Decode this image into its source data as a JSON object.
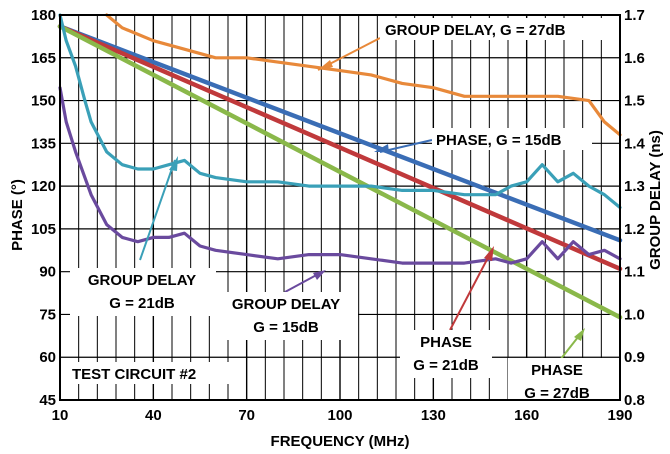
{
  "chart_data": {
    "type": "line",
    "title": "",
    "xlabel": "FREQUENCY (MHz)",
    "ylabel_left": "PHASE (°)",
    "ylabel_right": "GROUP DELAY (ns)",
    "xlim": [
      10,
      190
    ],
    "ylim_left": [
      45,
      180
    ],
    "ylim_right": [
      0.8,
      1.7
    ],
    "x_ticks": [
      "10",
      "40",
      "70",
      "100",
      "130",
      "160",
      "190"
    ],
    "y_left_ticks": [
      "45",
      "60",
      "75",
      "90",
      "105",
      "120",
      "135",
      "150",
      "165",
      "180"
    ],
    "y_right_ticks": [
      "0.8",
      "0.9",
      "1.0",
      "1.1",
      "1.2",
      "1.3",
      "1.4",
      "1.5",
      "1.6",
      "1.7"
    ],
    "grid": true,
    "colors": {
      "phase_15": "#3a6db5",
      "phase_21": "#c0393b",
      "phase_27": "#8ab84a",
      "gd_27": "#e8893a",
      "gd_21": "#3aa0b8",
      "gd_15": "#6a4a9e"
    },
    "series": [
      {
        "name": "PHASE, G = 15dB",
        "axis": "left",
        "x": [
          10,
          190
        ],
        "y": [
          176,
          101
        ]
      },
      {
        "name": "PHASE, G = 21dB",
        "axis": "left",
        "x": [
          10,
          190
        ],
        "y": [
          176,
          91
        ]
      },
      {
        "name": "PHASE, G = 27dB",
        "axis": "left",
        "x": [
          10,
          190
        ],
        "y": [
          176,
          74
        ]
      },
      {
        "name": "GROUP DELAY, G = 27dB",
        "axis": "right",
        "x": [
          25,
          30,
          40,
          50,
          60,
          70,
          80,
          90,
          100,
          110,
          120,
          130,
          140,
          150,
          160,
          170,
          180,
          185,
          190
        ],
        "y": [
          1.71,
          1.67,
          1.64,
          1.62,
          1.6,
          1.6,
          1.59,
          1.58,
          1.57,
          1.56,
          1.54,
          1.53,
          1.51,
          1.51,
          1.51,
          1.51,
          1.5,
          1.45,
          1.42
        ]
      },
      {
        "name": "GROUP DELAY G = 21dB",
        "axis": "right",
        "x": [
          10,
          12,
          15,
          18,
          20,
          25,
          30,
          35,
          40,
          45,
          50,
          55,
          60,
          70,
          80,
          90,
          100,
          110,
          120,
          130,
          140,
          150,
          155,
          160,
          165,
          170,
          175,
          180,
          185,
          190
        ],
        "y": [
          1.7,
          1.64,
          1.58,
          1.5,
          1.45,
          1.38,
          1.35,
          1.34,
          1.34,
          1.35,
          1.36,
          1.33,
          1.32,
          1.31,
          1.31,
          1.3,
          1.3,
          1.3,
          1.29,
          1.29,
          1.28,
          1.28,
          1.3,
          1.31,
          1.35,
          1.31,
          1.33,
          1.3,
          1.28,
          1.25
        ]
      },
      {
        "name": "GROUP DELAY G = 15dB",
        "axis": "right",
        "x": [
          10,
          12,
          15,
          18,
          20,
          25,
          30,
          35,
          40,
          45,
          50,
          55,
          60,
          70,
          80,
          90,
          100,
          110,
          120,
          130,
          140,
          150,
          155,
          160,
          165,
          170,
          175,
          180,
          185,
          190
        ],
        "y": [
          1.53,
          1.45,
          1.38,
          1.32,
          1.28,
          1.21,
          1.18,
          1.17,
          1.18,
          1.18,
          1.19,
          1.16,
          1.15,
          1.14,
          1.13,
          1.14,
          1.14,
          1.13,
          1.12,
          1.12,
          1.12,
          1.13,
          1.12,
          1.13,
          1.17,
          1.13,
          1.17,
          1.14,
          1.15,
          1.13
        ]
      }
    ],
    "annotations": [
      "GROUP DELAY, G = 27dB",
      "PHASE, G = 15dB",
      "GROUP DELAY",
      "G = 21dB",
      "GROUP DELAY",
      "G = 15dB",
      "PHASE",
      "G = 21dB",
      "PHASE",
      "G = 27dB",
      "TEST CIRCUIT #2"
    ]
  }
}
